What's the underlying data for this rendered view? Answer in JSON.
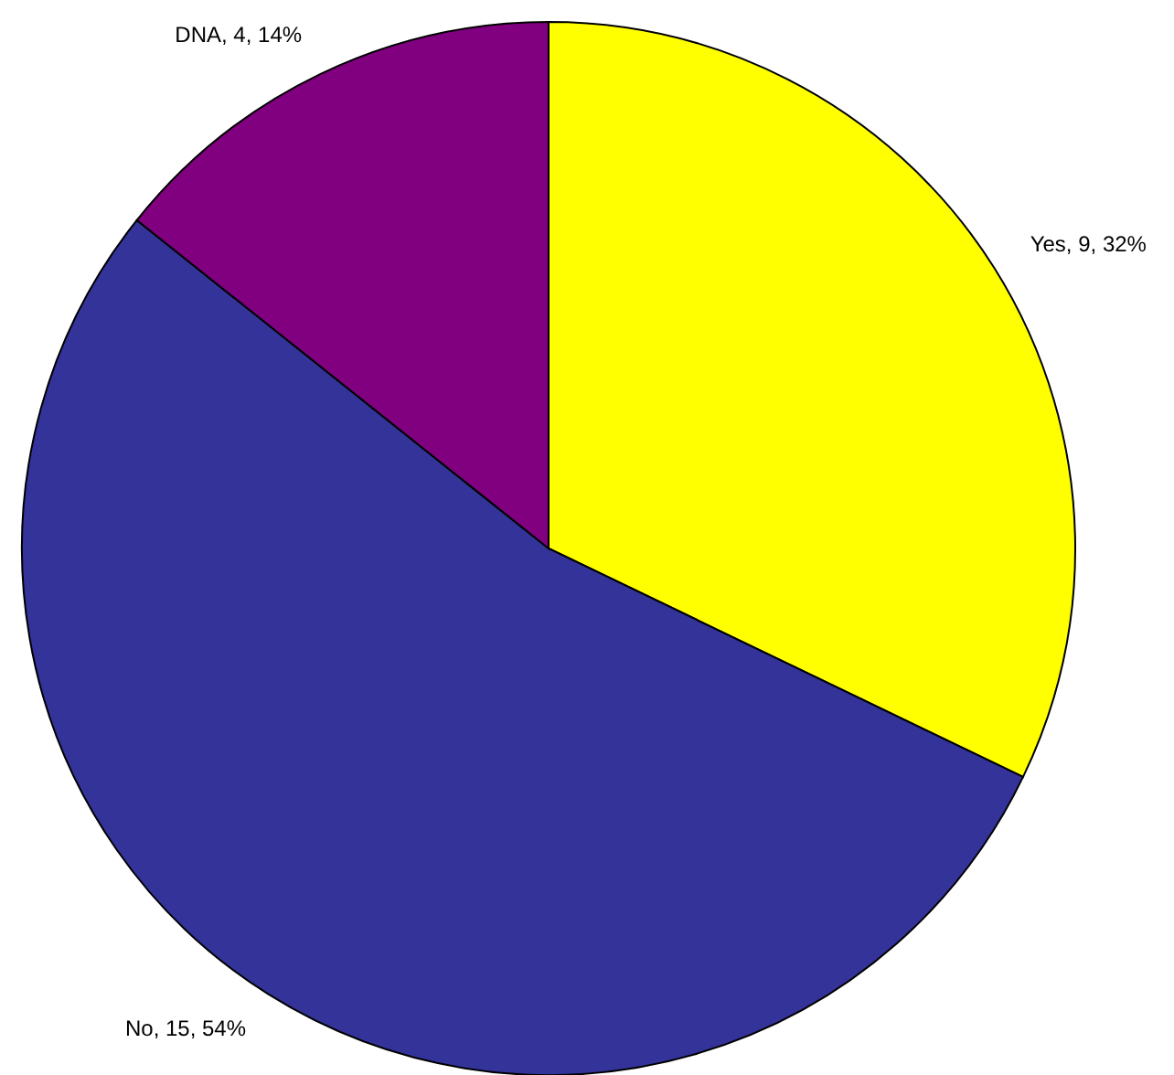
{
  "chart_data": {
    "type": "pie",
    "categories": [
      "Yes",
      "No",
      "DNA"
    ],
    "values": [
      9,
      15,
      4
    ],
    "colors": [
      "#ffff00",
      "#333399",
      "#800080"
    ],
    "value_labels": [
      "9, 32%",
      "15, 54%",
      "4, 14%"
    ]
  }
}
